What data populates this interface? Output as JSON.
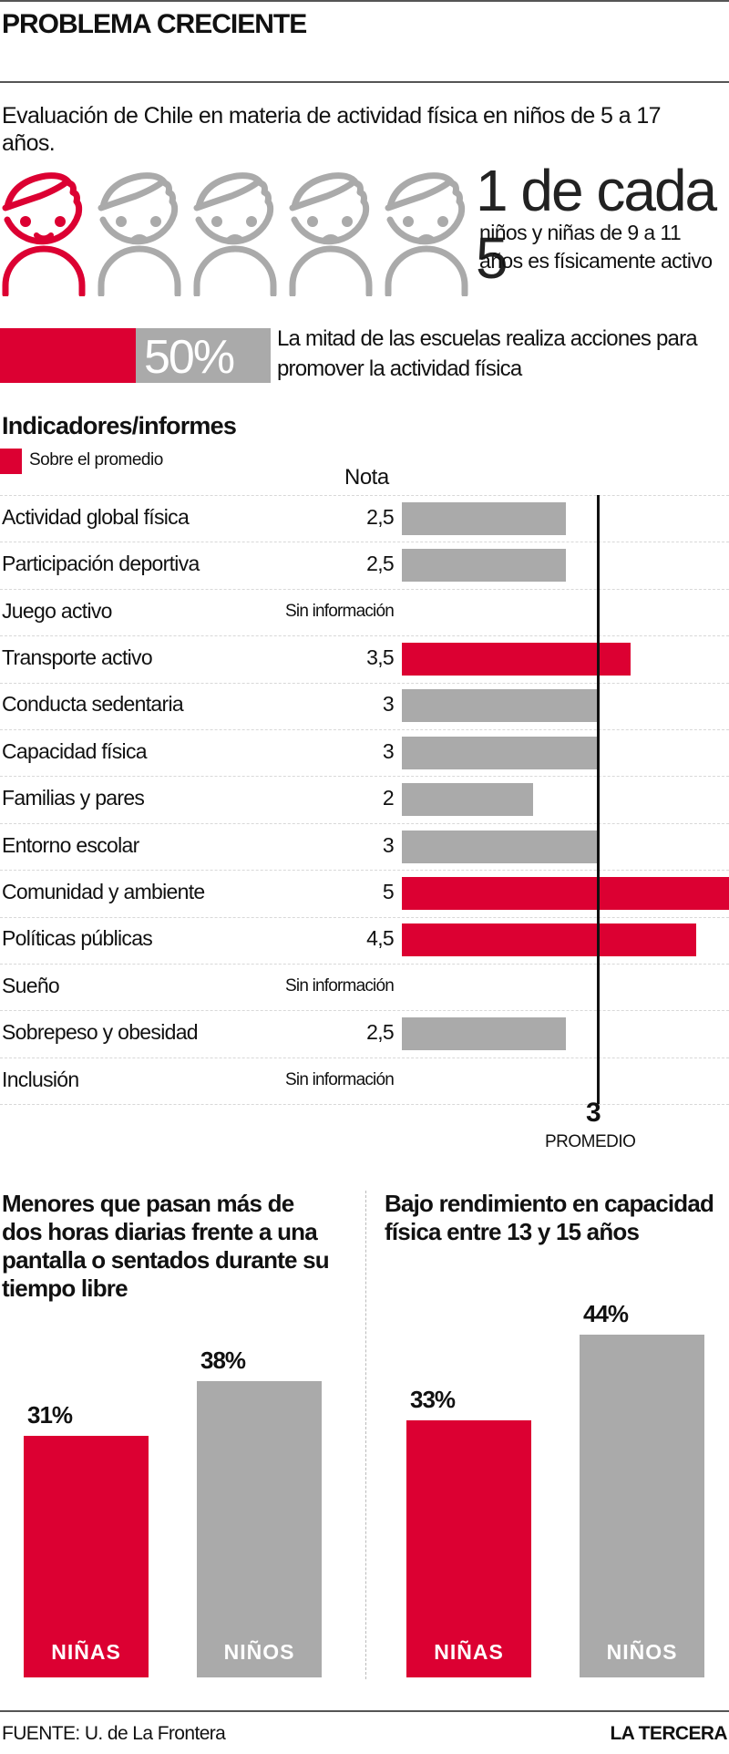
{
  "header": {
    "title": "PROBLEMA CRECIENTE",
    "subtitle": "Evaluación de Chile en materia de actividad física en niños de 5 a 17 años."
  },
  "colors": {
    "accent": "#dc0032",
    "neutral": "#aaaaaa",
    "text": "#111111"
  },
  "pictogram": {
    "total": 5,
    "highlighted": 1,
    "icons": [
      "happy-child-icon",
      "sad-child-icon",
      "sad-child-icon",
      "sad-child-icon",
      "sad-child-icon"
    ],
    "headline": "1 de cada 5",
    "text": "niños y niñas de 9 a 11 años es físicamente activo"
  },
  "schools": {
    "percent_label": "50%",
    "fraction": 0.5,
    "text": "La mitad de las escuelas realiza acciones para promover la actividad física"
  },
  "chart_data": [
    {
      "type": "bar",
      "orientation": "horizontal",
      "title": "Indicadores/informes",
      "legend": [
        {
          "label": "Sobre el promedio",
          "color": "#dc0032"
        }
      ],
      "value_header": "Nota",
      "xlim": [
        0,
        5
      ],
      "reference_line": {
        "value": 3,
        "value_label": "3",
        "label": "PROMEDIO"
      },
      "categories": [
        "Actividad global física",
        "Participación deportiva",
        "Juego activo",
        "Transporte activo",
        "Conducta sedentaria",
        "Capacidad física",
        "Familias y pares",
        "Entorno escolar",
        "Comunidad y ambiente",
        "Políticas públicas",
        "Sueño",
        "Sobrepeso y obesidad",
        "Inclusión"
      ],
      "values": [
        2.5,
        2.5,
        null,
        3.5,
        3,
        3,
        2,
        3,
        5,
        4.5,
        null,
        2.5,
        null
      ],
      "value_labels": [
        "2,5",
        "2,5",
        "Sin información",
        "3,5",
        "3",
        "3",
        "2",
        "3",
        "5",
        "4,5",
        "Sin información",
        "2,5",
        "Sin información"
      ],
      "above_average": [
        false,
        false,
        false,
        true,
        false,
        false,
        false,
        false,
        true,
        true,
        false,
        false,
        false
      ]
    },
    {
      "type": "bar",
      "title": "Menores que pasan más de dos horas diarias frente a una pantalla o sentados durante su tiempo libre",
      "categories": [
        "NIÑAS",
        "NIÑOS"
      ],
      "values": [
        31,
        38
      ],
      "value_labels": [
        "31%",
        "38%"
      ],
      "colors": [
        "#dc0032",
        "#aaaaaa"
      ],
      "ylim": [
        0,
        50
      ],
      "unit": "%"
    },
    {
      "type": "bar",
      "title": "Bajo rendimiento en capacidad física entre 13 y 15 años",
      "categories": [
        "NIÑAS",
        "NIÑOS"
      ],
      "values": [
        33,
        44
      ],
      "value_labels": [
        "33%",
        "44%"
      ],
      "colors": [
        "#dc0032",
        "#aaaaaa"
      ],
      "ylim": [
        0,
        50
      ],
      "unit": "%"
    }
  ],
  "footer": {
    "source": "FUENTE: U. de La Frontera",
    "brand": "LA TERCERA"
  }
}
